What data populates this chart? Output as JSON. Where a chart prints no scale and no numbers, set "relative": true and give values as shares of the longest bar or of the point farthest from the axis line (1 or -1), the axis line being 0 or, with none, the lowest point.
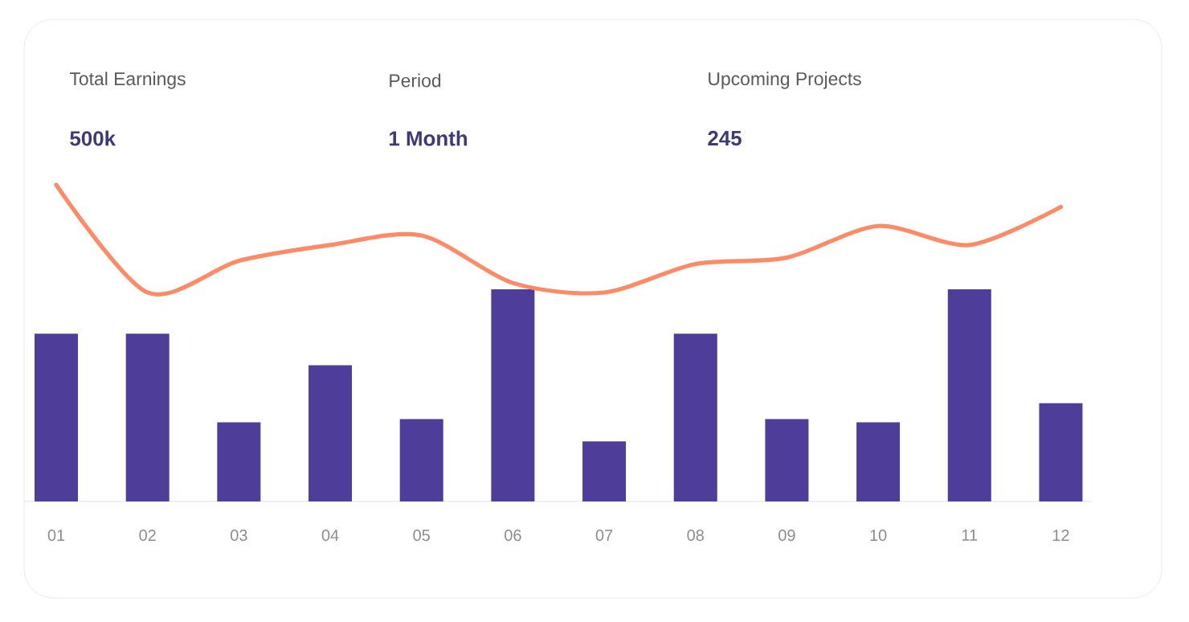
{
  "chart_data": {
    "type": "bar",
    "relative": true,
    "annotations": [
      "Total Earnings",
      "500k",
      "Period",
      "1 Month",
      "Upcoming Projects",
      "245"
    ],
    "categories": [
      "01",
      "02",
      "03",
      "04",
      "05",
      "06",
      "07",
      "08",
      "09",
      "10",
      "11",
      "12"
    ],
    "series": [
      {
        "color": "#4f3d9a",
        "values": [
          0.53,
          0.53,
          0.25,
          0.43,
          0.26,
          0.67,
          0.19,
          0.53,
          0.26,
          0.25,
          0.67,
          0.31
        ]
      },
      {
        "type": "line",
        "color": "#ff8a65",
        "values": [
          1,
          0.66,
          0.76,
          0.81,
          0.84,
          0.69,
          0.66,
          0.75,
          0.77,
          0.87,
          0.81,
          0.93
        ]
      }
    ]
  }
}
